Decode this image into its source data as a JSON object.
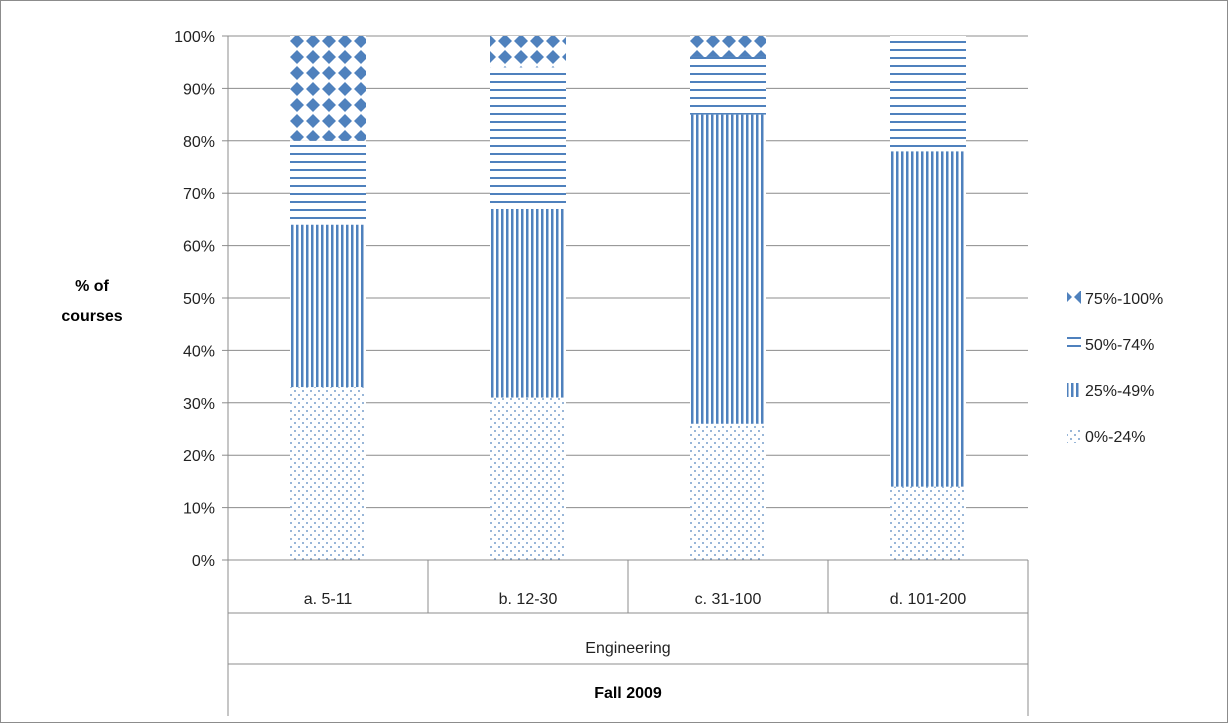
{
  "chart_data": {
    "type": "bar",
    "stacked": true,
    "categories": [
      "a. 5-11",
      "b. 12-30",
      "c. 31-100",
      "d. 101-200"
    ],
    "group_label": "Engineering",
    "super_group_label": "Fall 2009",
    "ylabel_lines": [
      "% of",
      "courses"
    ],
    "ylim": [
      0,
      1
    ],
    "yticks": [
      "0%",
      "10%",
      "20%",
      "30%",
      "40%",
      "50%",
      "60%",
      "70%",
      "80%",
      "90%",
      "100%"
    ],
    "grid": true,
    "legend_position": "right",
    "series": [
      {
        "name": "0%-24%",
        "pattern": "dots",
        "values": [
          0.33,
          0.31,
          0.26,
          0.14
        ]
      },
      {
        "name": "25%-49%",
        "pattern": "vertical-lines",
        "values": [
          0.31,
          0.36,
          0.59,
          0.64
        ]
      },
      {
        "name": "50%-74%",
        "pattern": "horizontal-lines",
        "values": [
          0.16,
          0.27,
          0.11,
          0.22
        ]
      },
      {
        "name": "75%-100%",
        "pattern": "diamonds",
        "values": [
          0.2,
          0.06,
          0.04,
          0.0
        ]
      }
    ],
    "legend_order": [
      "75%-100%",
      "50%-74%",
      "25%-49%",
      "0%-24%"
    ],
    "colors": {
      "primary": "#4f81bd",
      "grid": "#8c8c8c"
    }
  }
}
